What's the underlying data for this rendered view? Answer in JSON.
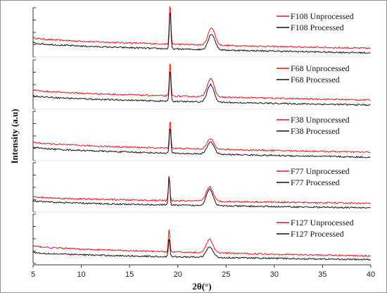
{
  "chart_data": {
    "type": "line",
    "title": "",
    "xlabel": "2θ(°)",
    "ylabel": "Intensity (a.u)",
    "xlim": [
      5,
      40
    ],
    "xticks": [
      5,
      10,
      15,
      20,
      25,
      30,
      35,
      40
    ],
    "xtick_labels": [
      "5",
      "10",
      "15",
      "20",
      "25",
      "30",
      "35",
      "40"
    ],
    "grid": false,
    "legend_position": "top-right of each panel",
    "colors": {
      "unprocessed": "#e8121a",
      "processed": "#111111"
    },
    "panels": [
      {
        "series": [
          {
            "name": "F108 Unprocessed",
            "baseline_start": 0.42,
            "baseline_end": 0.16,
            "peaks": [
              [
                19.2,
                1.0,
                0.08
              ],
              [
                23.5,
                0.42,
                0.35
              ]
            ]
          },
          {
            "name": "F108 Processed",
            "baseline_start": 0.3,
            "baseline_end": 0.05,
            "peaks": [
              [
                19.2,
                0.95,
                0.08
              ],
              [
                23.5,
                0.38,
                0.35
              ]
            ]
          }
        ]
      },
      {
        "series": [
          {
            "name": "F68 Unprocessed",
            "baseline_start": 0.42,
            "baseline_end": 0.17,
            "peaks": [
              [
                19.2,
                0.85,
                0.08
              ],
              [
                23.4,
                0.45,
                0.35
              ]
            ]
          },
          {
            "name": "F68 Processed",
            "baseline_start": 0.28,
            "baseline_end": 0.05,
            "peaks": [
              [
                19.2,
                0.8,
                0.08
              ],
              [
                23.4,
                0.42,
                0.35
              ]
            ]
          }
        ]
      },
      {
        "series": [
          {
            "name": "F38 Unprocessed",
            "baseline_start": 0.4,
            "baseline_end": 0.15,
            "peaks": [
              [
                19.2,
                0.7,
                0.08
              ],
              [
                23.4,
                0.25,
                0.35
              ]
            ]
          },
          {
            "name": "F38 Processed",
            "baseline_start": 0.28,
            "baseline_end": 0.03,
            "peaks": [
              [
                19.2,
                0.65,
                0.08
              ],
              [
                23.4,
                0.3,
                0.35
              ]
            ]
          }
        ]
      },
      {
        "series": [
          {
            "name": "F77 Unprocessed",
            "baseline_start": 0.32,
            "baseline_end": 0.16,
            "peaks": [
              [
                19.1,
                0.58,
                0.08
              ],
              [
                23.3,
                0.35,
                0.35
              ]
            ]
          },
          {
            "name": "F77 Processed",
            "baseline_start": 0.22,
            "baseline_end": 0.05,
            "peaks": [
              [
                19.1,
                0.72,
                0.08
              ],
              [
                23.3,
                0.4,
                0.35
              ]
            ]
          }
        ]
      },
      {
        "series": [
          {
            "name": "F127 Unprocessed",
            "baseline_start": 0.38,
            "baseline_end": 0.13,
            "peaks": [
              [
                19.1,
                0.55,
                0.08
              ],
              [
                23.3,
                0.32,
                0.35
              ]
            ]
          },
          {
            "name": "F127 Processed",
            "baseline_start": 0.22,
            "baseline_end": 0.04,
            "peaks": [
              [
                19.1,
                0.45,
                0.08
              ],
              [
                23.3,
                0.25,
                0.35
              ]
            ]
          }
        ]
      }
    ]
  }
}
